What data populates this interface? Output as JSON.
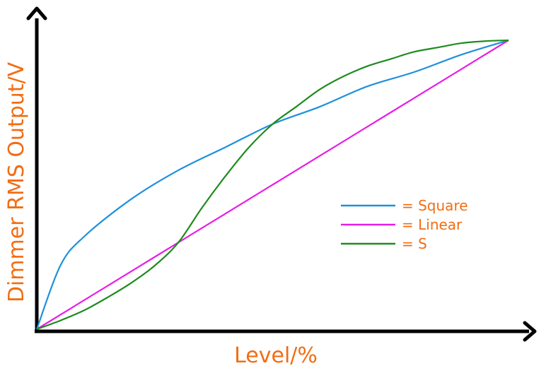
{
  "chart_data": {
    "type": "line",
    "xlabel": "Level/%",
    "ylabel": "Dimmer RMS Output/V",
    "xlim": [
      0,
      1
    ],
    "ylim": [
      0,
      1
    ],
    "grid": false,
    "legend_position": "right-center",
    "label_color": "#f26d12",
    "series": [
      {
        "name": "= Square",
        "color": "#1e90dc",
        "x": [
          0,
          0.05,
          0.1,
          0.2,
          0.3,
          0.4,
          0.5,
          0.6,
          0.7,
          0.8,
          0.9,
          1.0
        ],
        "y": [
          0,
          0.22,
          0.32,
          0.45,
          0.55,
          0.63,
          0.71,
          0.77,
          0.84,
          0.89,
          0.95,
          1.0
        ]
      },
      {
        "name": "= Linear",
        "color": "#e61ee6",
        "x": [
          0,
          0.1,
          0.2,
          0.3,
          0.4,
          0.5,
          0.6,
          0.7,
          0.8,
          0.9,
          1.0
        ],
        "y": [
          0,
          0.1,
          0.2,
          0.3,
          0.4,
          0.5,
          0.6,
          0.7,
          0.8,
          0.9,
          1.0
        ]
      },
      {
        "name": "= S",
        "color": "#1e8c1e",
        "x": [
          0,
          0.05,
          0.1,
          0.15,
          0.2,
          0.25,
          0.3,
          0.35,
          0.4,
          0.45,
          0.5,
          0.55,
          0.6,
          0.65,
          0.7,
          0.75,
          0.8,
          0.85,
          0.9,
          0.95,
          1.0
        ],
        "y": [
          0,
          0.03,
          0.065,
          0.11,
          0.16,
          0.22,
          0.3,
          0.42,
          0.53,
          0.63,
          0.71,
          0.77,
          0.83,
          0.875,
          0.91,
          0.935,
          0.96,
          0.975,
          0.99,
          0.997,
          1.0
        ]
      }
    ]
  }
}
